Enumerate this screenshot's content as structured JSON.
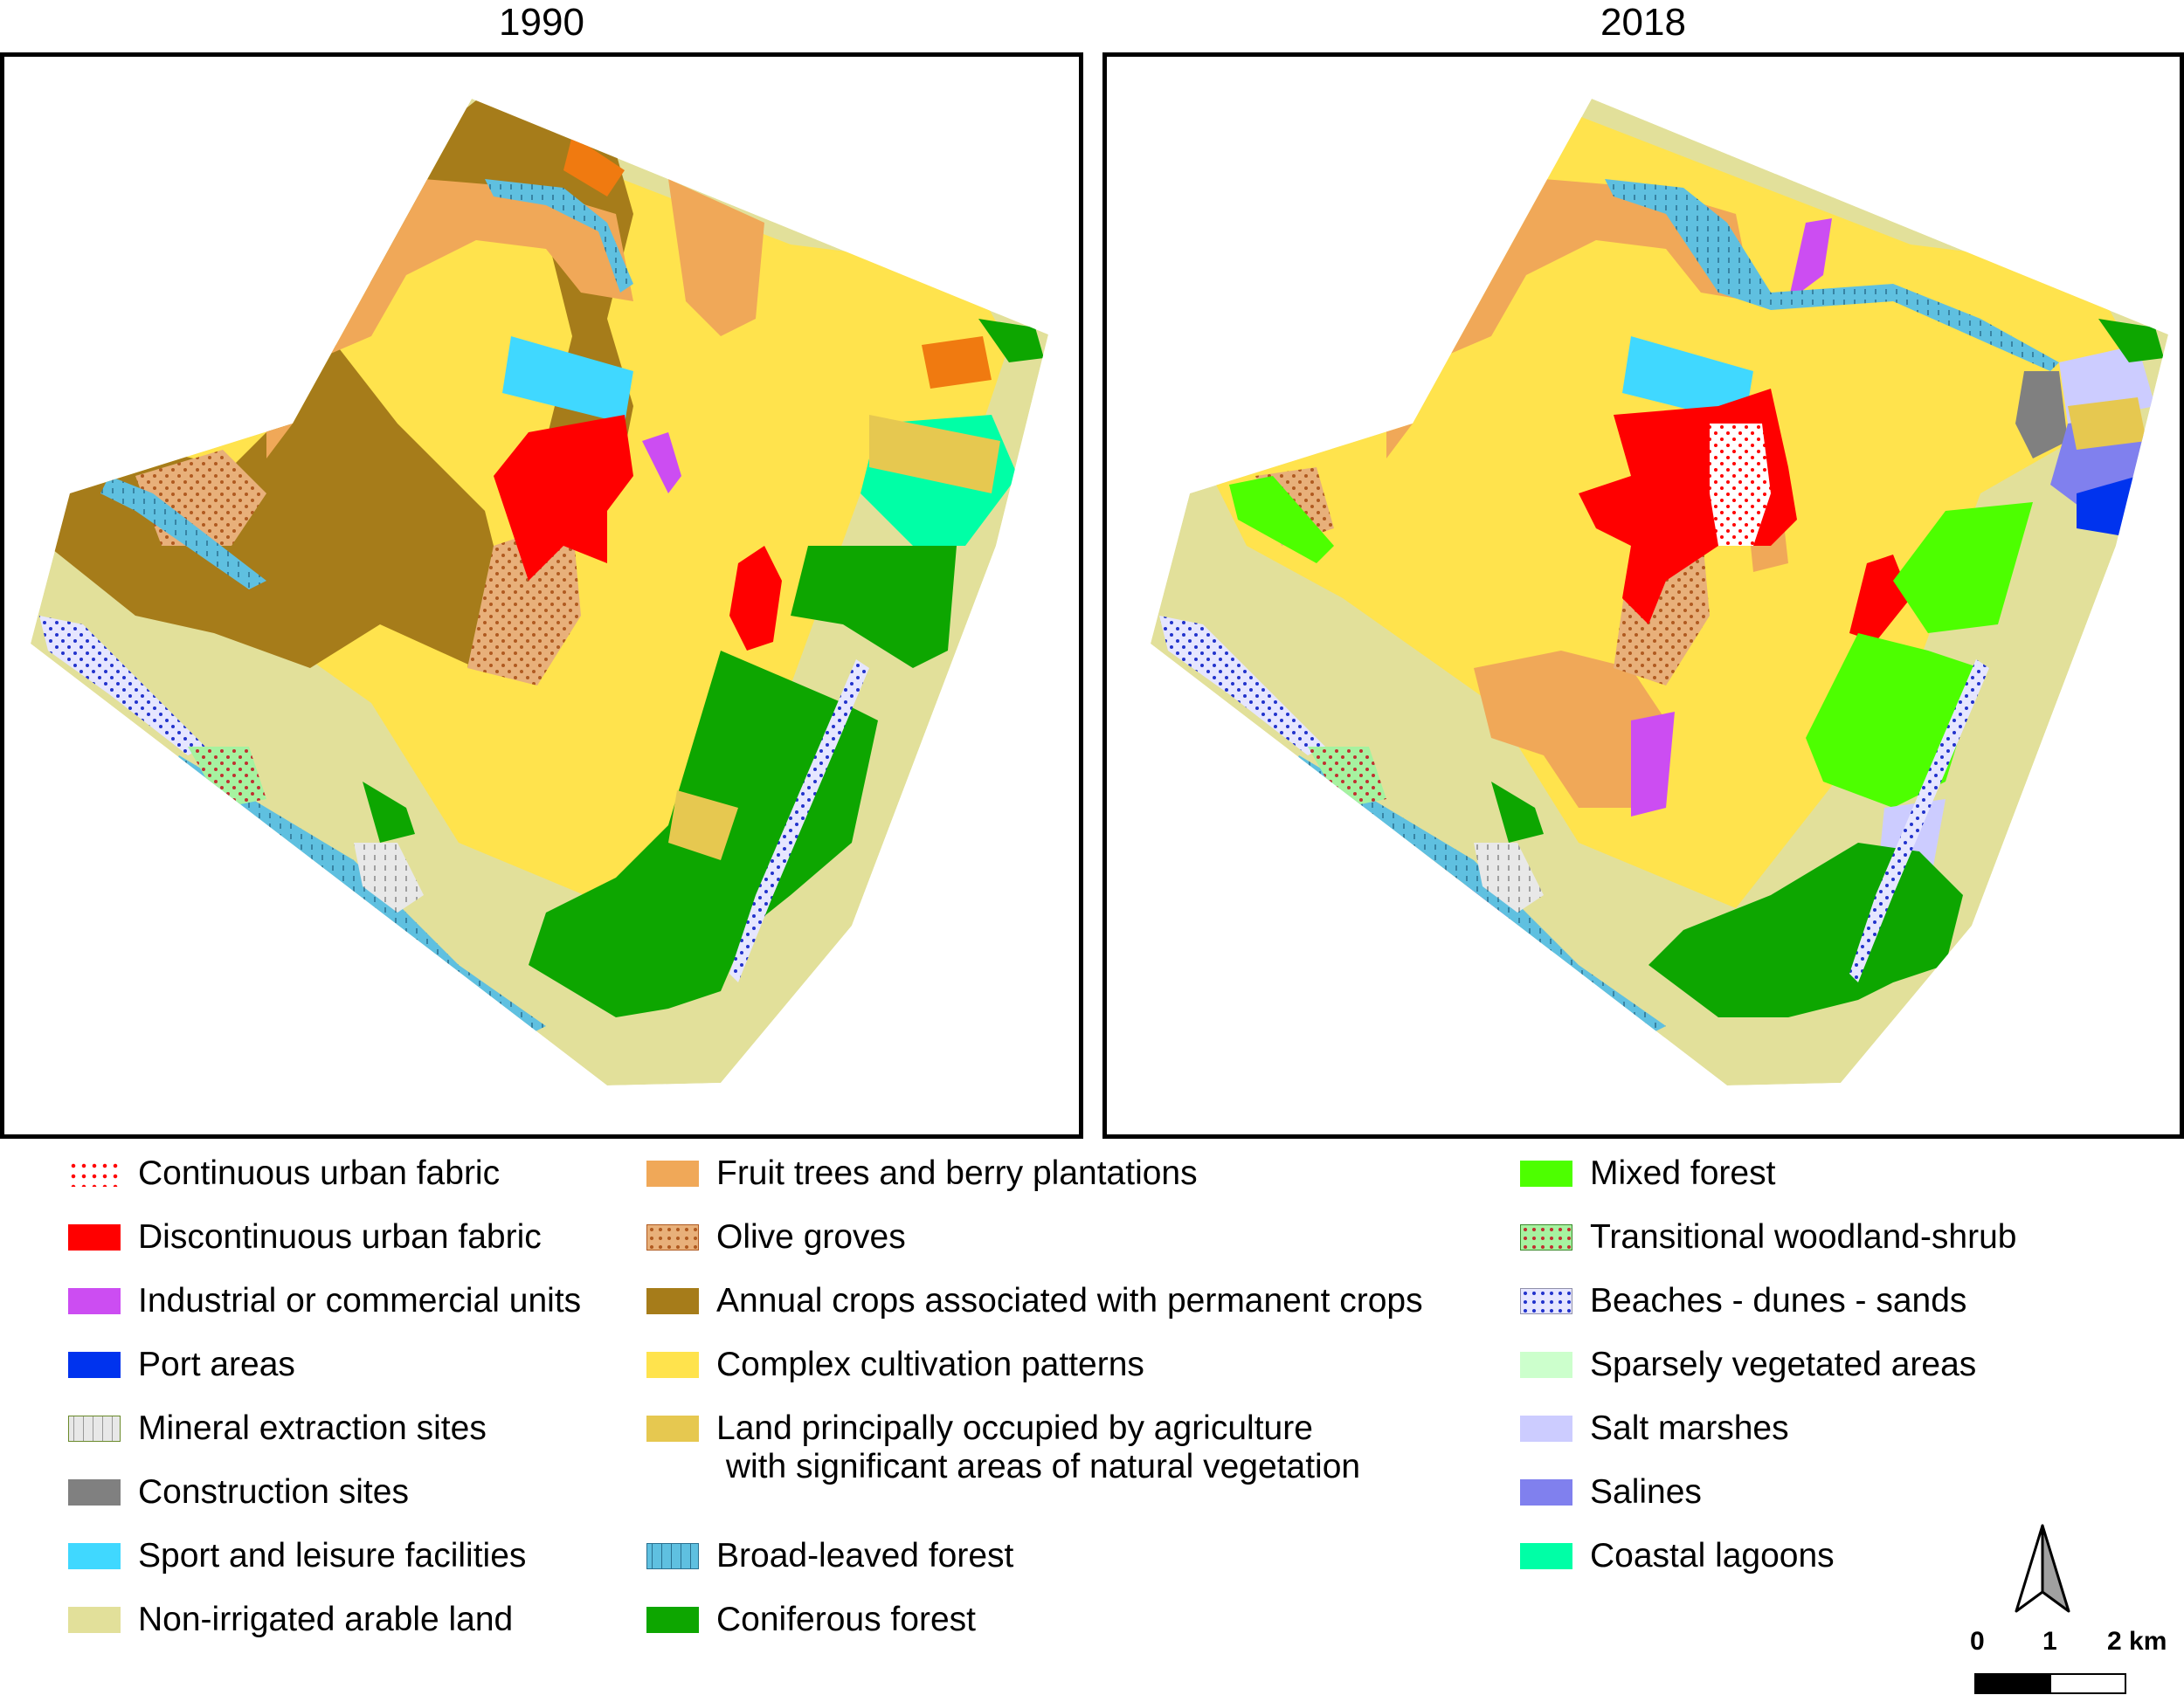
{
  "maps": [
    {
      "title": "1990"
    },
    {
      "title": "2018"
    }
  ],
  "legend": {
    "columns": [
      [
        {
          "label": "Continuous urban fabric",
          "color": "#ffffff",
          "pattern": "red-dots"
        },
        {
          "label": "Discontinuous urban fabric",
          "color": "#ff0000"
        },
        {
          "label": "Industrial or commercial units",
          "color": "#cc4df2"
        },
        {
          "label": "Port areas",
          "color": "#0033ee"
        },
        {
          "label": "Mineral extraction sites",
          "color": "#e8e8e8",
          "pattern": "grey-dashes"
        },
        {
          "label": "Construction sites",
          "color": "#808080"
        },
        {
          "label": "Sport and leisure facilities",
          "color": "#40d8ff"
        },
        {
          "label": "Non-irrigated arable land",
          "color": "#e2e09a"
        }
      ],
      [
        {
          "label": "Fruit trees and berry plantations",
          "color": "#f0a858"
        },
        {
          "label": "Olive groves",
          "color": "#e8b07a",
          "pattern": "brown-dots"
        },
        {
          "label": "Annual crops associated with permanent crops",
          "color": "#a67c1a"
        },
        {
          "label": "Complex cultivation patterns",
          "color": "#ffe34d"
        },
        {
          "label": "Land principally occupied by agriculture\n with significant areas of natural vegetation",
          "color": "#e6c850"
        },
        {
          "label": "Broad-leaved forest",
          "color": "#5fc0e0",
          "pattern": "blue-dashes"
        },
        {
          "label": "Coniferous forest",
          "color": "#0da600"
        }
      ],
      [
        {
          "label": "Mixed forest",
          "color": "#4dff00"
        },
        {
          "label": "Transitional woodland-shrub",
          "color": "#a6f2a0",
          "pattern": "red-dots"
        },
        {
          "label": "Beaches - dunes - sands",
          "color": "#e6e6ff",
          "pattern": "blue-dots"
        },
        {
          "label": "Sparsely vegetated areas",
          "color": "#ccffcc"
        },
        {
          "label": "Salt marshes",
          "color": "#ccccff"
        },
        {
          "label": "Salines",
          "color": "#8080ee"
        },
        {
          "label": "Coastal lagoons",
          "color": "#00ffa6"
        }
      ]
    ]
  },
  "scalebar": {
    "labels": [
      "0",
      "1",
      "2 km"
    ]
  }
}
